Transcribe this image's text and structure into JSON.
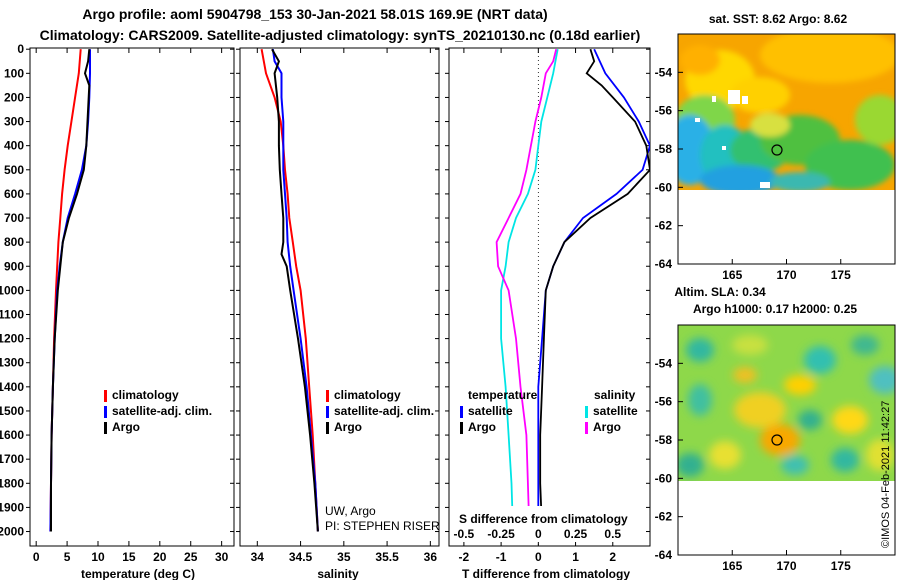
{
  "header": {
    "line1": "Argo profile: aoml 5904798_153 30-Jan-2021 58.01S 169.9E (NRT data)",
    "line2": "Climatology: CARS2009. Satellite-adjusted climatology: synTS_20210130.nc (0.18d earlier)"
  },
  "colors": {
    "climatology": "#ff0000",
    "satellite": "#0000ff",
    "argo": "#000000",
    "argo_salinity_diff": "#ff00ff",
    "satellite_salinity_diff": "#00e5e5"
  },
  "chart_data": [
    {
      "type": "line",
      "id": "temperature",
      "xlabel": "temperature (deg C)",
      "ylabel": "",
      "xlim": [
        -1,
        32
      ],
      "ylim": [
        2060,
        -5
      ],
      "xticks": [
        0,
        5,
        10,
        15,
        20,
        25,
        30
      ],
      "xtick_labels": [
        "0",
        "5",
        "10",
        "15",
        "20",
        "25",
        "30"
      ],
      "yticks": [
        0,
        100,
        200,
        300,
        400,
        500,
        600,
        700,
        800,
        900,
        1000,
        1100,
        1200,
        1300,
        1400,
        1500,
        1600,
        1700,
        1800,
        1900,
        2000
      ],
      "ytick_labels": [
        "0",
        "100",
        "200",
        "300",
        "400",
        "500",
        "600",
        "700",
        "800",
        "900",
        "1000",
        "1100",
        "1200",
        "1300",
        "1400",
        "1500",
        "1600",
        "1700",
        "1800",
        "1900",
        "2000"
      ],
      "legend": [
        "climatology",
        "satellite-adj. clim.",
        "Argo"
      ],
      "series": [
        {
          "name": "climatology",
          "depth": [
            0,
            100,
            200,
            300,
            400,
            500,
            600,
            700,
            800,
            900,
            1000,
            1200,
            1400,
            1600,
            1800,
            2000
          ],
          "values": [
            7.2,
            6.9,
            6.3,
            5.7,
            5.1,
            4.6,
            4.2,
            3.9,
            3.6,
            3.4,
            3.2,
            2.9,
            2.7,
            2.5,
            2.4,
            2.3
          ]
        },
        {
          "name": "satellite-adj. clim.",
          "depth": [
            0,
            100,
            200,
            300,
            400,
            500,
            600,
            700,
            800,
            900,
            1000,
            1200,
            1400,
            1600,
            1800,
            2000
          ],
          "values": [
            8.7,
            8.7,
            8.6,
            8.4,
            8.1,
            7.4,
            6.3,
            5.1,
            4.3,
            3.8,
            3.4,
            3.0,
            2.7,
            2.5,
            2.4,
            2.3
          ]
        },
        {
          "name": "Argo",
          "depth": [
            0,
            50,
            100,
            150,
            200,
            300,
            400,
            500,
            600,
            700,
            800,
            900,
            1000,
            1200,
            1400,
            1600,
            1800,
            2000
          ],
          "values": [
            8.6,
            8.4,
            7.9,
            8.6,
            8.5,
            8.3,
            8.1,
            7.7,
            6.6,
            5.3,
            4.3,
            3.9,
            3.5,
            3.0,
            2.7,
            2.5,
            2.4,
            2.4
          ]
        }
      ]
    },
    {
      "type": "line",
      "id": "salinity",
      "xlabel": "salinity",
      "notes": [
        "UW, Argo",
        "PI: STEPHEN RISER"
      ],
      "xlim": [
        33.8,
        36.1
      ],
      "ylim": [
        2060,
        -5
      ],
      "xticks": [
        34,
        34.5,
        35,
        35.5,
        36
      ],
      "xtick_labels": [
        "34",
        "34.5",
        "35",
        "35.5",
        "36"
      ],
      "legend": [
        "climatology",
        "satellite-adj. clim.",
        "Argo"
      ],
      "series": [
        {
          "name": "climatology",
          "depth": [
            0,
            100,
            200,
            300,
            400,
            500,
            600,
            700,
            800,
            900,
            1000,
            1200,
            1400,
            1600,
            1800,
            2000
          ],
          "values": [
            34.05,
            34.1,
            34.2,
            34.27,
            34.3,
            34.32,
            34.35,
            34.37,
            34.41,
            34.45,
            34.5,
            34.56,
            34.6,
            34.64,
            34.67,
            34.7
          ]
        },
        {
          "name": "satellite-adj. clim.",
          "depth": [
            0,
            50,
            100,
            200,
            300,
            400,
            500,
            600,
            700,
            800,
            900,
            1000,
            1200,
            1400,
            1600,
            1800,
            2000
          ],
          "values": [
            34.18,
            34.2,
            34.28,
            34.28,
            34.3,
            34.3,
            34.3,
            34.32,
            34.34,
            34.35,
            34.38,
            34.42,
            34.5,
            34.57,
            34.62,
            34.67,
            34.7
          ]
        },
        {
          "name": "Argo",
          "depth": [
            0,
            50,
            100,
            200,
            300,
            400,
            500,
            600,
            700,
            800,
            850,
            900,
            1000,
            1200,
            1400,
            1600,
            1800,
            2000
          ],
          "values": [
            34.17,
            34.25,
            34.2,
            34.23,
            34.25,
            34.25,
            34.26,
            34.28,
            34.3,
            34.3,
            34.28,
            34.34,
            34.38,
            34.47,
            34.55,
            34.61,
            34.66,
            34.7
          ]
        }
      ]
    },
    {
      "type": "line",
      "id": "difference",
      "xlabel": "T difference from climatology",
      "secondary_xlabel": "S difference from climatology",
      "xlim": [
        -2.4,
        3.0
      ],
      "ylim": [
        2060,
        -5
      ],
      "xticks": [
        -2,
        -1,
        0,
        1,
        2
      ],
      "xtick_labels": [
        "-2",
        "-1",
        "0",
        "1",
        "2"
      ],
      "secondary_xticks": [
        -0.5,
        -0.25,
        0,
        0.25,
        0.5
      ],
      "secondary_xtick_labels": [
        "-0.5",
        "-0.25",
        "0",
        "0.25",
        "0.5"
      ],
      "legend_temperature_header": "temperature",
      "legend_salinity_header": "salinity",
      "legend_satellite": "satellite",
      "legend_argo": "Argo",
      "series": [
        {
          "name": "T satellite",
          "depth": [
            0,
            100,
            200,
            300,
            400,
            500,
            600,
            700,
            800,
            900,
            1000,
            1200,
            1400,
            1600,
            1800,
            2000
          ],
          "values": [
            1.5,
            1.8,
            2.3,
            2.7,
            3.0,
            2.8,
            2.1,
            1.2,
            0.7,
            0.4,
            0.2,
            0.1,
            0.0,
            0.0,
            0.0,
            0.0
          ]
        },
        {
          "name": "T Argo",
          "depth": [
            0,
            50,
            100,
            150,
            200,
            300,
            400,
            500,
            600,
            700,
            800,
            900,
            1000,
            1200,
            1400,
            1600,
            1800,
            2000
          ],
          "values": [
            1.4,
            1.5,
            1.3,
            1.7,
            2.0,
            2.6,
            2.9,
            3.0,
            2.4,
            1.4,
            0.7,
            0.4,
            0.2,
            0.15,
            0.1,
            0.05,
            0.05,
            0.1
          ]
        },
        {
          "name": "S satellite",
          "depth": [
            0,
            100,
            200,
            300,
            400,
            500,
            600,
            700,
            800,
            900,
            1000,
            1200,
            1400,
            1600,
            1800,
            2000
          ],
          "values": [
            0.13,
            0.1,
            0.06,
            0.02,
            0.0,
            -0.02,
            -0.07,
            -0.15,
            -0.2,
            -0.22,
            -0.25,
            -0.25,
            -0.22,
            -0.2,
            -0.18,
            -0.17
          ]
        },
        {
          "name": "S Argo",
          "depth": [
            0,
            50,
            100,
            200,
            300,
            400,
            500,
            600,
            700,
            800,
            900,
            1000,
            1200,
            1400,
            1600,
            1800,
            2000
          ],
          "values": [
            0.12,
            0.1,
            0.05,
            0.02,
            -0.02,
            -0.05,
            -0.08,
            -0.12,
            -0.2,
            -0.28,
            -0.27,
            -0.2,
            -0.15,
            -0.12,
            -0.08,
            -0.07,
            -0.06
          ]
        }
      ]
    },
    {
      "type": "heatmap",
      "id": "sst-map",
      "title": "sat. SST: 8.62 Argo: 8.62",
      "xlim": [
        160,
        180
      ],
      "ylim": [
        -64,
        -52
      ],
      "xticks": [
        165,
        170,
        175
      ],
      "xtick_labels": [
        "165",
        "170",
        "175"
      ],
      "yticks": [
        -54,
        -56,
        -58,
        -60,
        -62,
        -64
      ],
      "ytick_labels": [
        "-54",
        "-56",
        "-58",
        "-60",
        "-62",
        "-64"
      ],
      "argo_position": [
        169.9,
        -58.01
      ],
      "data_bottom_lat": -60
    },
    {
      "type": "heatmap",
      "id": "sla-map",
      "title1": "Altim. SLA: 0.34",
      "title2": "Argo h1000: 0.17 h2000: 0.25",
      "xlim": [
        160,
        180
      ],
      "ylim": [
        -64,
        -52
      ],
      "xticks": [
        165,
        170,
        175
      ],
      "xtick_labels": [
        "165",
        "170",
        "175"
      ],
      "yticks": [
        -54,
        -56,
        -58,
        -60,
        -62,
        -64
      ],
      "ytick_labels": [
        "-54",
        "-56",
        "-58",
        "-60",
        "-62",
        "-64"
      ],
      "argo_position": [
        169.9,
        -58.01
      ],
      "data_bottom_lat": -60
    }
  ],
  "stamp": "©IMOS 04-Feb-2021 11:42:27"
}
